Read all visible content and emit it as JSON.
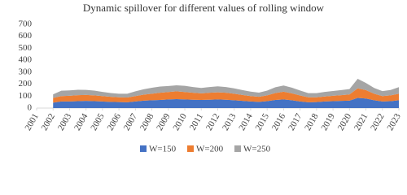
{
  "chart_data": {
    "type": "stacked-area",
    "title": "Dynamic spillover for different values of rolling window",
    "x": [
      2002,
      2002.5,
      2003,
      2003.5,
      2004,
      2004.5,
      2005,
      2005.5,
      2006,
      2006.5,
      2007,
      2007.5,
      2008,
      2008.5,
      2009,
      2009.5,
      2010,
      2010.5,
      2011,
      2011.5,
      2012,
      2012.5,
      2013,
      2013.5,
      2014,
      2014.5,
      2015,
      2015.5,
      2016,
      2016.5,
      2017,
      2017.5,
      2018,
      2018.5,
      2019,
      2019.5,
      2020,
      2020.5,
      2021,
      2021.5,
      2022,
      2022.5,
      2023
    ],
    "series": [
      {
        "name": "W=150",
        "color": "#4472c4",
        "values": [
          45,
          55,
          55,
          58,
          60,
          58,
          55,
          52,
          50,
          48,
          55,
          62,
          65,
          68,
          72,
          75,
          72,
          70,
          68,
          70,
          72,
          70,
          65,
          60,
          55,
          52,
          58,
          68,
          72,
          65,
          55,
          48,
          50,
          55,
          58,
          60,
          62,
          85,
          80,
          65,
          55,
          58,
          65
        ]
      },
      {
        "name": "W=200",
        "color": "#ed7d31",
        "values": [
          40,
          45,
          48,
          50,
          50,
          48,
          45,
          42,
          40,
          40,
          45,
          50,
          55,
          60,
          62,
          65,
          62,
          58,
          55,
          58,
          60,
          58,
          55,
          50,
          45,
          42,
          48,
          58,
          65,
          58,
          50,
          42,
          40,
          42,
          45,
          48,
          52,
          80,
          70,
          55,
          45,
          48,
          55
        ]
      },
      {
        "name": "W=250",
        "color": "#a5a5a5",
        "values": [
          30,
          45,
          45,
          45,
          42,
          40,
          35,
          32,
          30,
          32,
          40,
          45,
          50,
          52,
          50,
          50,
          52,
          48,
          45,
          48,
          50,
          48,
          45,
          40,
          38,
          35,
          40,
          48,
          52,
          48,
          42,
          35,
          35,
          38,
          40,
          42,
          45,
          80,
          60,
          48,
          42,
          45,
          55
        ]
      }
    ],
    "xlim": [
      2001,
      2023
    ],
    "xticks": [
      2001,
      2002,
      2003,
      2004,
      2005,
      2006,
      2007,
      2008,
      2009,
      2010,
      2011,
      2012,
      2013,
      2014,
      2015,
      2016,
      2017,
      2018,
      2019,
      2020,
      2021,
      2022,
      2023
    ],
    "ylim": [
      0,
      700
    ],
    "yticks": [
      0,
      100,
      200,
      300,
      400,
      500,
      600,
      700
    ]
  }
}
